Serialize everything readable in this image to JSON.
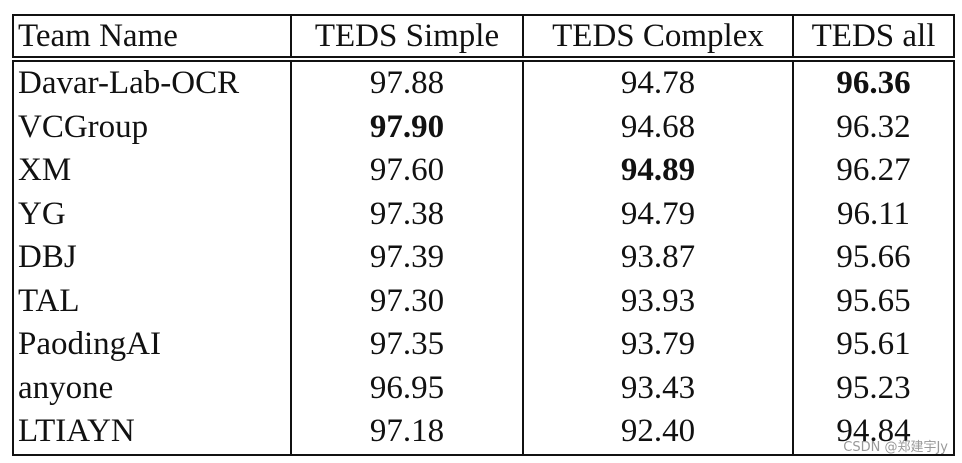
{
  "table": {
    "header": [
      "Team Name",
      "TEDS Simple",
      "TEDS Complex",
      "TEDS all"
    ],
    "rows": [
      [
        "Davar-Lab-OCR",
        "97.88",
        "94.78",
        "96.36"
      ],
      [
        "VCGroup",
        "97.90",
        "94.68",
        "96.32"
      ],
      [
        "XM",
        "97.60",
        "94.89",
        "96.27"
      ],
      [
        "YG",
        "97.38",
        "94.79",
        "96.11"
      ],
      [
        "DBJ",
        "97.39",
        "93.87",
        "95.66"
      ],
      [
        "TAL",
        "97.30",
        "93.93",
        "95.65"
      ],
      [
        "PaodingAI",
        "97.35",
        "93.79",
        "95.61"
      ],
      [
        "anyone",
        "96.95",
        "93.43",
        "95.23"
      ],
      [
        "LTIAYN",
        "97.18",
        "92.40",
        "94.84"
      ]
    ],
    "bold_cells": [
      [
        0,
        3
      ],
      [
        1,
        1
      ],
      [
        2,
        2
      ]
    ]
  },
  "watermark": "CSDN @郑建宇Jy"
}
